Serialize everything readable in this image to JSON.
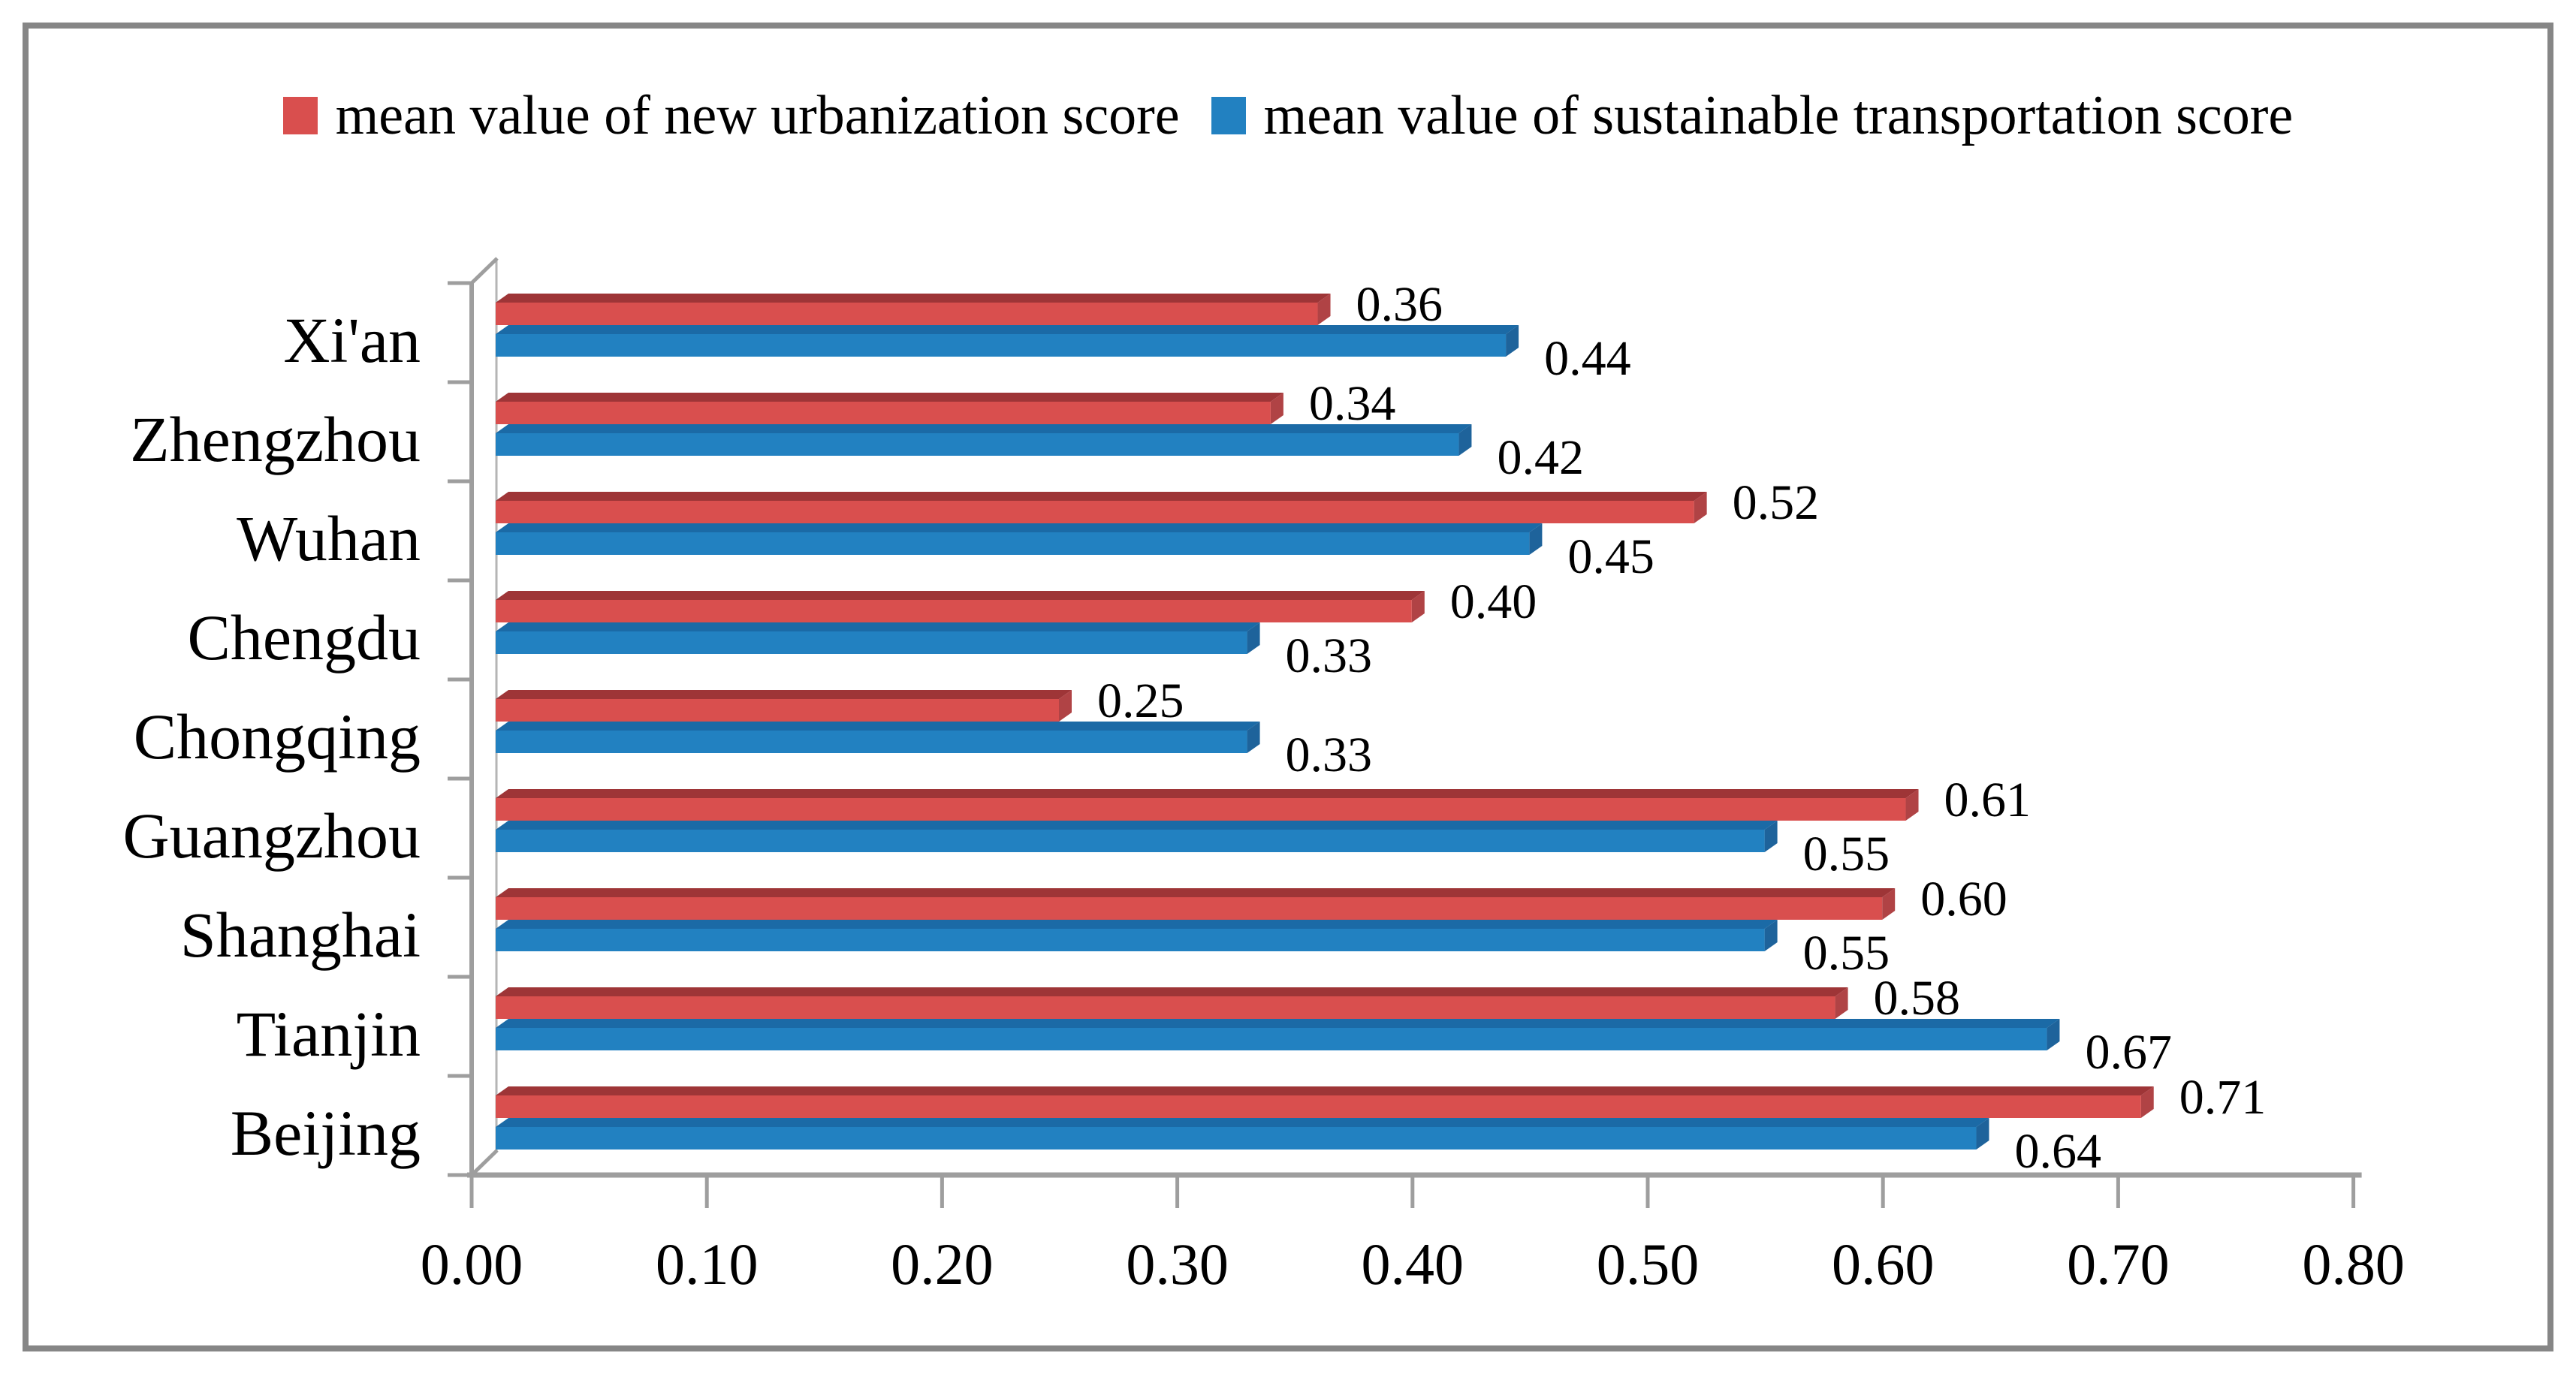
{
  "window": {
    "background": "#ffffff",
    "frame_border_color": "#868686"
  },
  "legend": {
    "items": [
      {
        "label": "mean value of new urbanization score",
        "color": "#d94f4e"
      },
      {
        "label": "mean value of sustainable transportation score",
        "color": "#2281c1"
      }
    ]
  },
  "chart_data": {
    "type": "bar",
    "orientation": "horizontal",
    "title": "",
    "xlabel": "",
    "ylabel": "",
    "categories": [
      "Xi'an",
      "Zhengzhou",
      "Wuhan",
      "Chengdu",
      "Chongqing",
      "Guangzhou",
      "Shanghai",
      "Tianjin",
      "Beijing"
    ],
    "series": [
      {
        "name": "mean value of new urbanization score",
        "color": "#d94f4e",
        "color_top": "#9e3537",
        "color_side": "#b04345",
        "values": [
          0.36,
          0.34,
          0.52,
          0.4,
          0.25,
          0.61,
          0.6,
          0.58,
          0.71
        ]
      },
      {
        "name": "mean value of sustainable transportation score",
        "color": "#2281c1",
        "color_top": "#1b6aa6",
        "color_side": "#1e639b",
        "values": [
          0.44,
          0.42,
          0.45,
          0.33,
          0.33,
          0.55,
          0.55,
          0.67,
          0.64
        ]
      }
    ],
    "x_ticks": [
      "0.00",
      "0.10",
      "0.20",
      "0.30",
      "0.40",
      "0.50",
      "0.60",
      "0.70",
      "0.80"
    ],
    "xlim": [
      0,
      0.8
    ],
    "value_label_decimals": 2,
    "grid": false,
    "legend_position": "top",
    "effect": "3d-bars",
    "axis_color": "#9e9e9e",
    "wall_color": "#b5b5b5",
    "text_color": "#000000"
  }
}
